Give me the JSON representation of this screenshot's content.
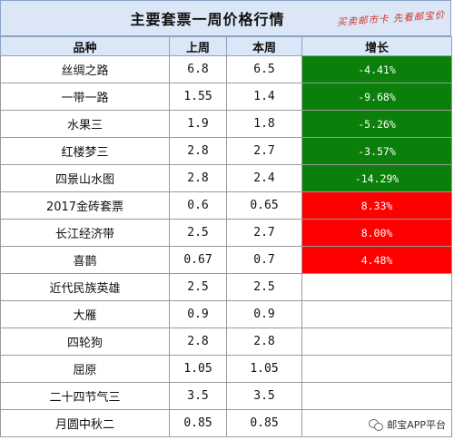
{
  "title": "主要套票一周价格行情",
  "slogan": "买卖邮市卡 先看邮宝价",
  "headers": {
    "name": "品种",
    "last": "上周",
    "this": "本周",
    "change": "增长"
  },
  "rows": [
    {
      "name": "丝绸之路",
      "last": "6.8",
      "this": "6.5",
      "change": "-4.41%",
      "trend": "down"
    },
    {
      "name": "一带一路",
      "last": "1.55",
      "this": "1.4",
      "change": "-9.68%",
      "trend": "down"
    },
    {
      "name": "水果三",
      "last": "1.9",
      "this": "1.8",
      "change": "-5.26%",
      "trend": "down"
    },
    {
      "name": "红楼梦三",
      "last": "2.8",
      "this": "2.7",
      "change": "-3.57%",
      "trend": "down"
    },
    {
      "name": "四景山水图",
      "last": "2.8",
      "this": "2.4",
      "change": "-14.29%",
      "trend": "down"
    },
    {
      "name": "2017金砖套票",
      "last": "0.6",
      "this": "0.65",
      "change": "8.33%",
      "trend": "up"
    },
    {
      "name": "长江经济带",
      "last": "2.5",
      "this": "2.7",
      "change": "8.00%",
      "trend": "up"
    },
    {
      "name": "喜鹊",
      "last": "0.67",
      "this": "0.7",
      "change": "4.48%",
      "trend": "up"
    },
    {
      "name": "近代民族英雄",
      "last": "2.5",
      "this": "2.5",
      "change": "",
      "trend": "none"
    },
    {
      "name": "大雁",
      "last": "0.9",
      "this": "0.9",
      "change": "",
      "trend": "none"
    },
    {
      "name": "四轮狗",
      "last": "2.8",
      "this": "2.8",
      "change": "",
      "trend": "none"
    },
    {
      "name": "屈原",
      "last": "1.05",
      "this": "1.05",
      "change": "",
      "trend": "none"
    },
    {
      "name": "二十四节气三",
      "last": "3.5",
      "this": "3.5",
      "change": "",
      "trend": "none"
    },
    {
      "name": "月圆中秋二",
      "last": "0.85",
      "this": "0.85",
      "change": "",
      "trend": "none"
    }
  ],
  "colors": {
    "down": "#0a7f0a",
    "up": "#ff0000",
    "header_bg": "#dbe7f7"
  },
  "watermark": {
    "icon": "wechat-icon",
    "text": "邮宝APP平台"
  }
}
